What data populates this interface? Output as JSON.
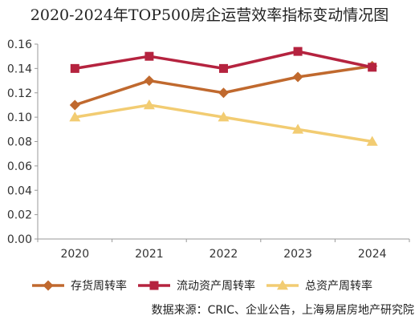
{
  "chart_data": {
    "type": "line",
    "title": "2020-2024年TOP500房企运营效率指标变动情况图",
    "categories": [
      "2020",
      "2021",
      "2022",
      "2023",
      "2024"
    ],
    "ylim": [
      0,
      0.16
    ],
    "yticks": [
      "0.00",
      "0.02",
      "0.04",
      "0.06",
      "0.08",
      "0.10",
      "0.12",
      "0.14",
      "0.16"
    ],
    "grid": false,
    "legend_position": "bottom",
    "series": [
      {
        "name": "存货周转率",
        "values": [
          0.11,
          0.13,
          0.12,
          0.133,
          0.142
        ],
        "color": "#C0692E",
        "marker": "diamond"
      },
      {
        "name": "流动资产周转率",
        "values": [
          0.14,
          0.15,
          0.14,
          0.154,
          0.141
        ],
        "color": "#B5233F",
        "marker": "square"
      },
      {
        "name": "总资产周转率",
        "values": [
          0.1,
          0.11,
          0.1,
          0.09,
          0.08
        ],
        "color": "#F2CC72",
        "marker": "triangle"
      }
    ]
  },
  "source": "数据来源：CRIC、企业公告，上海易居房地产研究院"
}
